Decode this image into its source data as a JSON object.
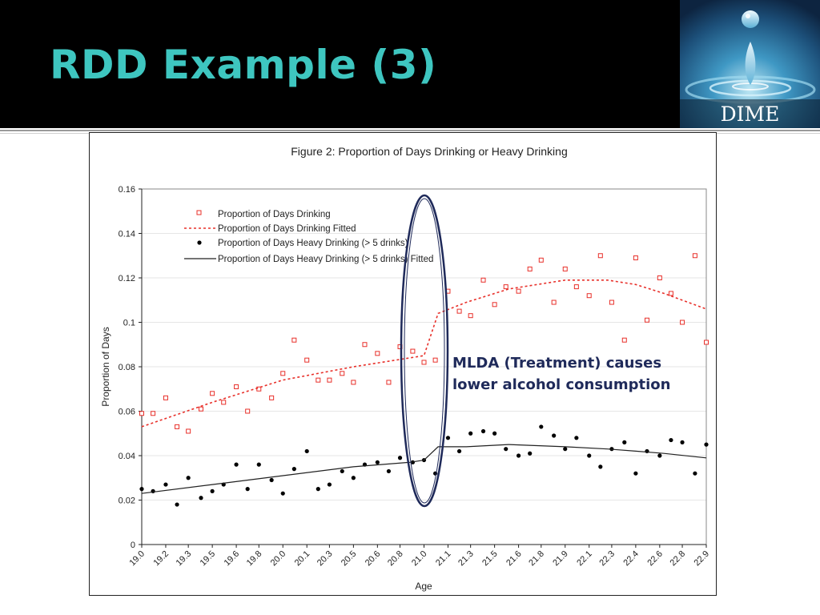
{
  "slide": {
    "title": "RDD Example (3)",
    "logo_text": "DIME",
    "annotation": "MLDA (Treatment) causes lower alcohol consumption"
  },
  "colors": {
    "title": "#3ec6c0",
    "drinking": "#e8302a",
    "heavy": "#000000",
    "ellipse": "#1f2a5a"
  },
  "chart_data": {
    "type": "scatter",
    "title": "Figure 2: Proportion of Days Drinking or Heavy Drinking",
    "xlabel": "Age",
    "ylabel": "Proportion of Days",
    "xlim": [
      19.0,
      23.0
    ],
    "ylim": [
      0,
      0.16
    ],
    "x_ticks": [
      "19.0",
      "19.2",
      "19.3",
      "19.5",
      "19.6",
      "19.8",
      "20.0",
      "20.1",
      "20.3",
      "20.5",
      "20.6",
      "20.8",
      "21.0",
      "21.1",
      "21.3",
      "21.5",
      "21.6",
      "21.8",
      "21.9",
      "22.1",
      "22.3",
      "22.4",
      "22.6",
      "22.8",
      "22.9"
    ],
    "x_tick_values": [
      19.0,
      19.17,
      19.33,
      19.5,
      19.67,
      19.83,
      20.0,
      20.17,
      20.33,
      20.5,
      20.67,
      20.83,
      21.0,
      21.17,
      21.33,
      21.5,
      21.67,
      21.83,
      22.0,
      22.17,
      22.33,
      22.5,
      22.67,
      22.83,
      23.0
    ],
    "y_ticks": [
      "0",
      "0.02",
      "0.04",
      "0.06",
      "0.08",
      "0.1",
      "0.12",
      "0.14",
      "0.16"
    ],
    "y_tick_values": [
      0,
      0.02,
      0.04,
      0.06,
      0.08,
      0.1,
      0.12,
      0.14,
      0.16
    ],
    "legend_position": "top-left",
    "series": [
      {
        "name": "Proportion of Days Drinking",
        "marker": "open-square",
        "x": [
          19.0,
          19.08,
          19.17,
          19.25,
          19.33,
          19.42,
          19.5,
          19.58,
          19.67,
          19.75,
          19.83,
          19.92,
          20.0,
          20.08,
          20.17,
          20.25,
          20.33,
          20.42,
          20.5,
          20.58,
          20.67,
          20.75,
          20.83,
          20.92,
          21.0,
          21.08,
          21.17,
          21.25,
          21.33,
          21.42,
          21.5,
          21.58,
          21.67,
          21.75,
          21.83,
          21.92,
          22.0,
          22.08,
          22.17,
          22.25,
          22.33,
          22.42,
          22.5,
          22.58,
          22.67,
          22.75,
          22.83,
          22.92,
          23.0
        ],
        "y": [
          0.059,
          0.059,
          0.066,
          0.053,
          0.051,
          0.061,
          0.068,
          0.064,
          0.071,
          0.06,
          0.07,
          0.066,
          0.077,
          0.092,
          0.083,
          0.074,
          0.074,
          0.077,
          0.073,
          0.09,
          0.086,
          0.073,
          0.089,
          0.087,
          0.082,
          0.083,
          0.114,
          0.105,
          0.103,
          0.119,
          0.108,
          0.116,
          0.114,
          0.124,
          0.128,
          0.109,
          0.124,
          0.116,
          0.112,
          0.13,
          0.109,
          0.092,
          0.129,
          0.101,
          0.12,
          0.113,
          0.1,
          0.13,
          0.091
        ]
      },
      {
        "name": "Proportion of Days Drinking Fitted",
        "line": "dashed",
        "x": [
          19.0,
          19.5,
          20.0,
          20.5,
          20.9,
          21.0,
          21.1,
          21.3,
          21.6,
          22.0,
          22.3,
          22.5,
          22.7,
          23.0
        ],
        "y": [
          0.053,
          0.064,
          0.074,
          0.08,
          0.084,
          0.085,
          0.104,
          0.109,
          0.115,
          0.119,
          0.119,
          0.117,
          0.113,
          0.106
        ]
      },
      {
        "name": "Proportion of Days Heavy Drinking (> 5 drinks)",
        "marker": "filled-circle",
        "x": [
          19.0,
          19.08,
          19.17,
          19.25,
          19.33,
          19.42,
          19.5,
          19.58,
          19.67,
          19.75,
          19.83,
          19.92,
          20.0,
          20.08,
          20.17,
          20.25,
          20.33,
          20.42,
          20.5,
          20.58,
          20.67,
          20.75,
          20.83,
          20.92,
          21.0,
          21.08,
          21.17,
          21.25,
          21.33,
          21.42,
          21.5,
          21.58,
          21.67,
          21.75,
          21.83,
          21.92,
          22.0,
          22.08,
          22.17,
          22.25,
          22.33,
          22.42,
          22.5,
          22.58,
          22.67,
          22.75,
          22.83,
          22.92,
          23.0
        ],
        "y": [
          0.025,
          0.024,
          0.027,
          0.018,
          0.03,
          0.021,
          0.024,
          0.027,
          0.036,
          0.025,
          0.036,
          0.029,
          0.023,
          0.034,
          0.042,
          0.025,
          0.027,
          0.033,
          0.03,
          0.036,
          0.037,
          0.033,
          0.039,
          0.037,
          0.038,
          0.032,
          0.048,
          0.042,
          0.05,
          0.051,
          0.05,
          0.043,
          0.04,
          0.041,
          0.053,
          0.049,
          0.043,
          0.048,
          0.04,
          0.035,
          0.043,
          0.046,
          0.032,
          0.042,
          0.04,
          0.047,
          0.046,
          0.032,
          0.045
        ]
      },
      {
        "name": "Proportion of Days Heavy Drinking (> 5 drinks) Fitted",
        "line": "solid",
        "x": [
          19.0,
          19.5,
          20.0,
          20.5,
          20.9,
          21.0,
          21.1,
          21.3,
          21.6,
          22.0,
          22.3,
          22.5,
          22.7,
          23.0
        ],
        "y": [
          0.023,
          0.027,
          0.031,
          0.035,
          0.037,
          0.038,
          0.044,
          0.044,
          0.045,
          0.044,
          0.043,
          0.042,
          0.041,
          0.039
        ]
      }
    ]
  }
}
